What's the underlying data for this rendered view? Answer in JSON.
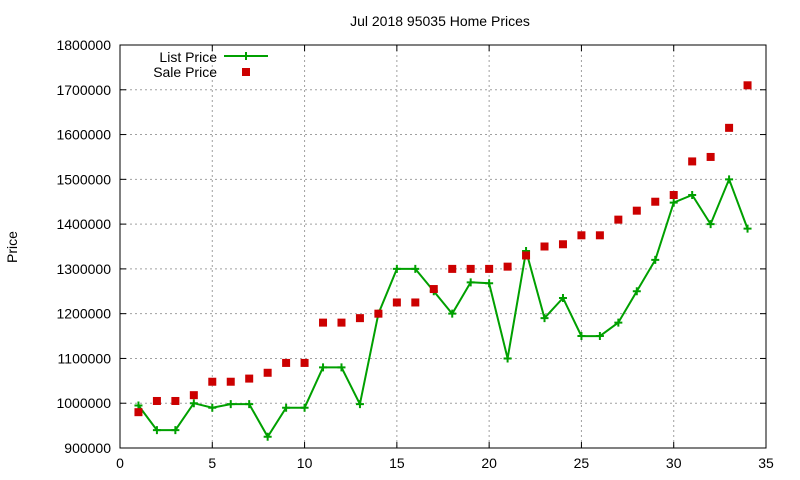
{
  "chart_data": {
    "type": "line",
    "title": "Jul 2018 95035 Home Prices",
    "xlabel": "",
    "ylabel": "Price",
    "xlim": [
      0,
      35
    ],
    "ylim": [
      900000,
      1800000
    ],
    "xticks": [
      0,
      5,
      10,
      15,
      20,
      25,
      30,
      35
    ],
    "yticks": [
      900000,
      1000000,
      1100000,
      1200000,
      1300000,
      1400000,
      1500000,
      1600000,
      1700000,
      1800000
    ],
    "grid": true,
    "legend_position": "top-left",
    "x": [
      1,
      2,
      3,
      4,
      5,
      6,
      7,
      8,
      9,
      10,
      11,
      12,
      13,
      14,
      15,
      16,
      17,
      18,
      19,
      20,
      21,
      22,
      23,
      24,
      25,
      26,
      27,
      28,
      29,
      30,
      31,
      32,
      33,
      34
    ],
    "series": [
      {
        "name": "List Price",
        "style": "line-with-plus-markers",
        "color": "#00a000",
        "values": [
          995000,
          940000,
          940000,
          1000000,
          990000,
          998000,
          998000,
          925000,
          990000,
          990000,
          1080000,
          1080000,
          998000,
          1200000,
          1300000,
          1300000,
          1250000,
          1200000,
          1270000,
          1268000,
          1100000,
          1340000,
          1190000,
          1235000,
          1150000,
          1150000,
          1180000,
          1250000,
          1320000,
          1448000,
          1465000,
          1400000,
          1500000,
          1390000
        ]
      },
      {
        "name": "Sale Price",
        "style": "square-markers",
        "color": "#cc0000",
        "values": [
          980000,
          1005000,
          1005000,
          1018000,
          1048000,
          1048000,
          1055000,
          1068000,
          1090000,
          1090000,
          1180000,
          1180000,
          1190000,
          1200000,
          1225000,
          1225000,
          1255000,
          1300000,
          1300000,
          1300000,
          1305000,
          1330000,
          1350000,
          1355000,
          1375000,
          1375000,
          1410000,
          1430000,
          1450000,
          1465000,
          1540000,
          1550000,
          1615000,
          1710000
        ]
      }
    ]
  }
}
